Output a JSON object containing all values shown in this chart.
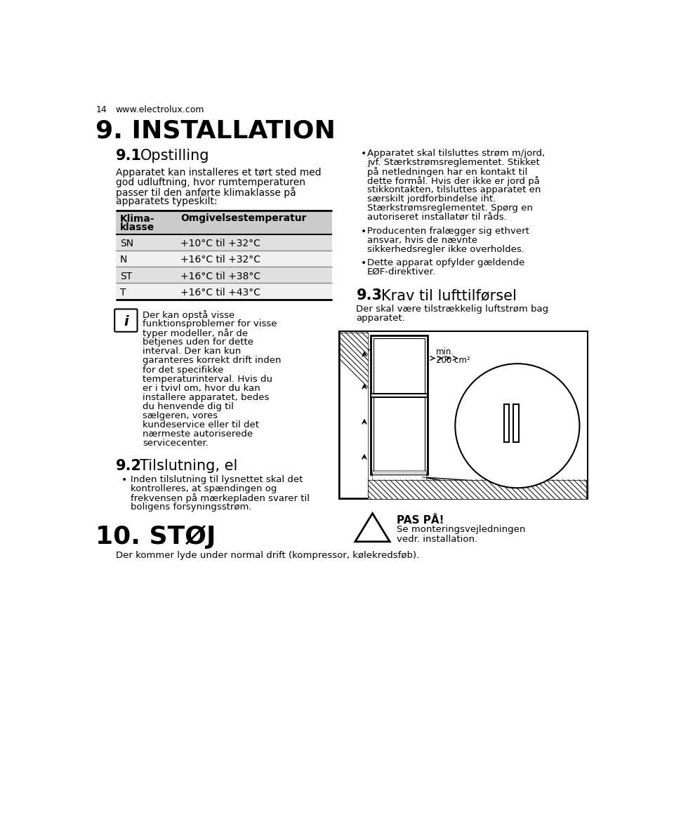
{
  "page_num": "14",
  "website": "www.electrolux.com",
  "section_title": "9. INSTALLATION",
  "sub91_bold": "9.1",
  "sub91_text": "Opstilling",
  "para91_lines": [
    "Apparatet kan installeres et tørt sted med",
    "god udluftning, hvor rumtemperaturen",
    "passer til den anførte klimaklasse på",
    "apparatets typeskilt:"
  ],
  "table_header_col1": "Klima-\nklasse",
  "table_header_col2": "Omgivelsestemperatur",
  "table_rows": [
    [
      "SN",
      "+10°C til +32°C"
    ],
    [
      "N",
      "+16°C til +32°C"
    ],
    [
      "ST",
      "+16°C til +38°C"
    ],
    [
      "T",
      "+16°C til +43°C"
    ]
  ],
  "info_lines": [
    "Der kan opstå visse",
    "funktionsproblemer for visse",
    "typer modeller, når de",
    "betjenes uden for dette",
    "interval. Der kan kun",
    "garanteres korrekt drift inden",
    "for det specifikke",
    "temperaturinterval. Hvis du",
    "er i tvivl om, hvor du kan",
    "installere apparatet, bedes",
    "du henvende dig til",
    "sælgeren, vores",
    "kundeservice eller til det",
    "nærmeste autoriserede",
    "servicecenter."
  ],
  "sub92_bold": "9.2",
  "sub92_text": "Tilslutning, el",
  "bullet92_lines": [
    "Inden tilslutning til lysnettet skal det",
    "kontrolleres, at spændingen og",
    "frekvensen på mærkepladen svarer til",
    "boligens forsyningsstrøm."
  ],
  "section10_title": "10. STØJ",
  "para10": "Der kommer lyde under normal drift (kompressor, kølekredsføb).",
  "bullet1_lines": [
    "Apparatet skal tilsluttes strøm m/jord,",
    "jvf. Stærkstrømsreglementet. Stikket",
    "på netledningen har en kontakt til",
    "dette formål. Hvis der ikke er jord på",
    "stikkontakten, tilsluttes apparatet en",
    "særskilt jordforbindelse iht.",
    "Stærkstrømsreglementet. Spørg en",
    "autoriseret installatør til råds."
  ],
  "bullet2_lines": [
    "Producenten fralægger sig ethvert",
    "ansvar, hvis de nævnte",
    "sikkerhedsregler ikke overholdes."
  ],
  "bullet3_lines": [
    "Dette apparat opfylder gældende",
    "EØF-direktiver."
  ],
  "sub93_bold": "9.3",
  "sub93_text": "Krav til lufttilførsel",
  "para93_lines": [
    "Der skal være tilstrækkelig luftstrøm bag",
    "apparatet."
  ],
  "warn_title": "PAS PÅ!",
  "warn_line1": "Se monteringsvejledningen",
  "warn_line2": "vedr. installation.",
  "table_header_bg": "#cccccc",
  "table_row_bg_odd": "#e0e0e0",
  "table_row_bg_even": "#efefef"
}
